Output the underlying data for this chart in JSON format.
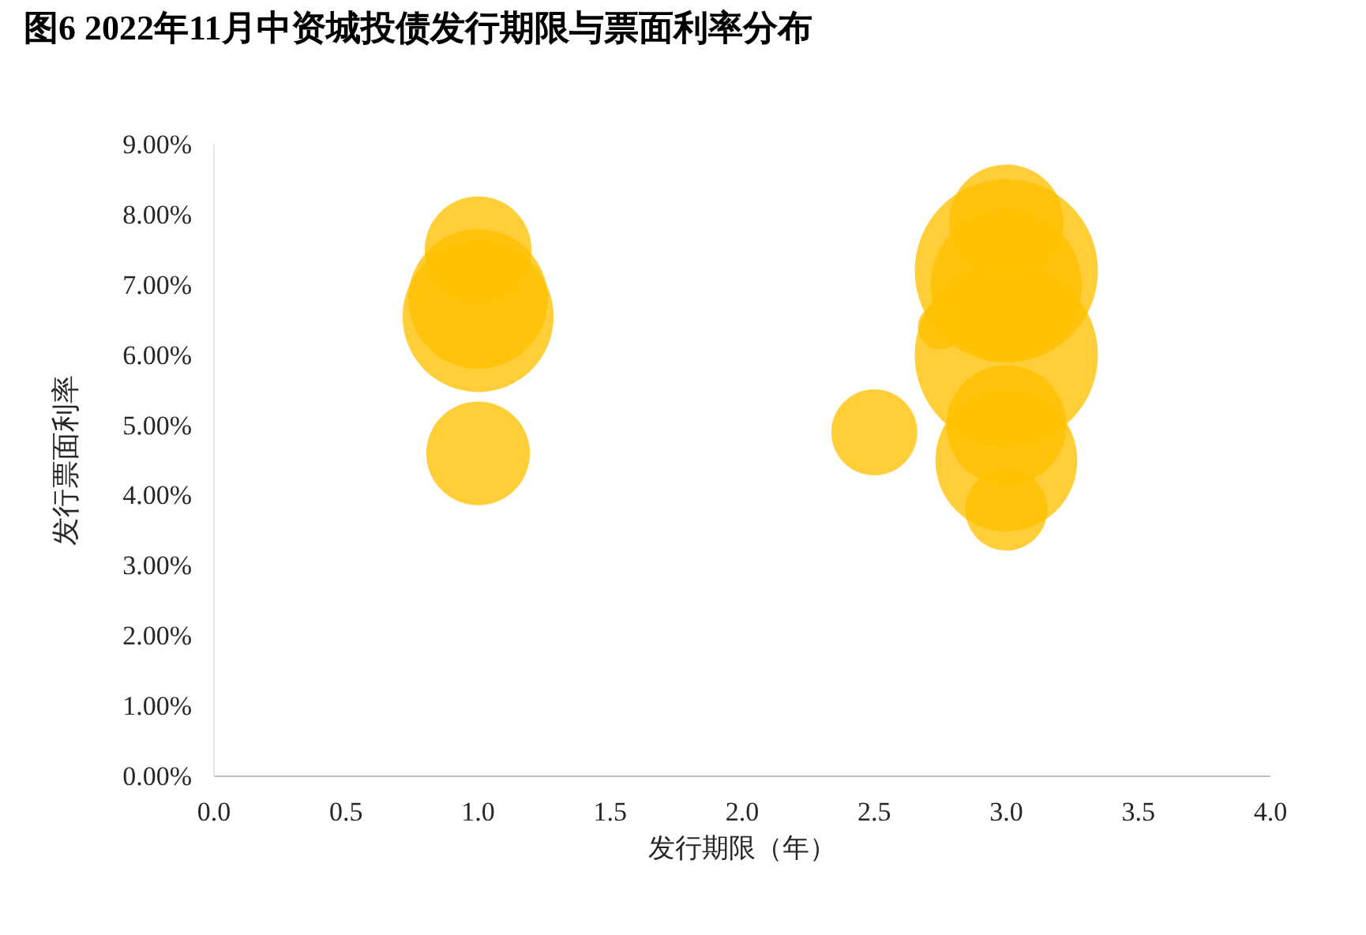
{
  "chart_data": {
    "type": "bubble",
    "title": "图6 2022年11月中资城投债发行期限与票面利率分布",
    "xlabel": "发行期限（年）",
    "ylabel": "发行票面利率",
    "color": "#ffc000",
    "x": [
      1,
      1,
      1,
      1,
      2.5,
      2.75,
      3,
      3,
      3,
      3,
      3,
      3,
      3
    ],
    "values": [
      6.55,
      6.8,
      7.5,
      4.6,
      4.9,
      6.4,
      7.2,
      6.0,
      7.0,
      7.9,
      4.5,
      5.0,
      3.8
    ],
    "sizes": [
      0.68,
      0.58,
      0.34,
      0.32,
      0.22,
      0.06,
      1,
      1,
      0.68,
      0.39,
      0.6,
      0.43,
      0.2
    ],
    "xlim": [
      0,
      4
    ],
    "ylim": [
      0,
      9
    ],
    "xticks": [
      {
        "value": 0,
        "label": "0.0"
      },
      0.5,
      {
        "value": 1,
        "label": "1.0"
      },
      1.5,
      {
        "value": 2,
        "label": "2.0"
      },
      2.5,
      {
        "value": 3,
        "label": "3.0"
      },
      3.5,
      {
        "value": 4,
        "label": "4.0"
      }
    ],
    "yticks": [
      {
        "value": 0,
        "label": "0.00%"
      },
      {
        "value": 1,
        "label": "1.00%"
      },
      {
        "value": 2,
        "label": "2.00%"
      },
      {
        "value": 3,
        "label": "3.00%"
      },
      {
        "value": 4,
        "label": "4.00%"
      },
      {
        "value": 5,
        "label": "5.00%"
      },
      {
        "value": 6,
        "label": "6.00%"
      },
      {
        "value": 7,
        "label": "7.00%"
      },
      {
        "value": 8,
        "label": "8.00%"
      },
      {
        "value": 9,
        "label": "9.00%"
      }
    ]
  }
}
